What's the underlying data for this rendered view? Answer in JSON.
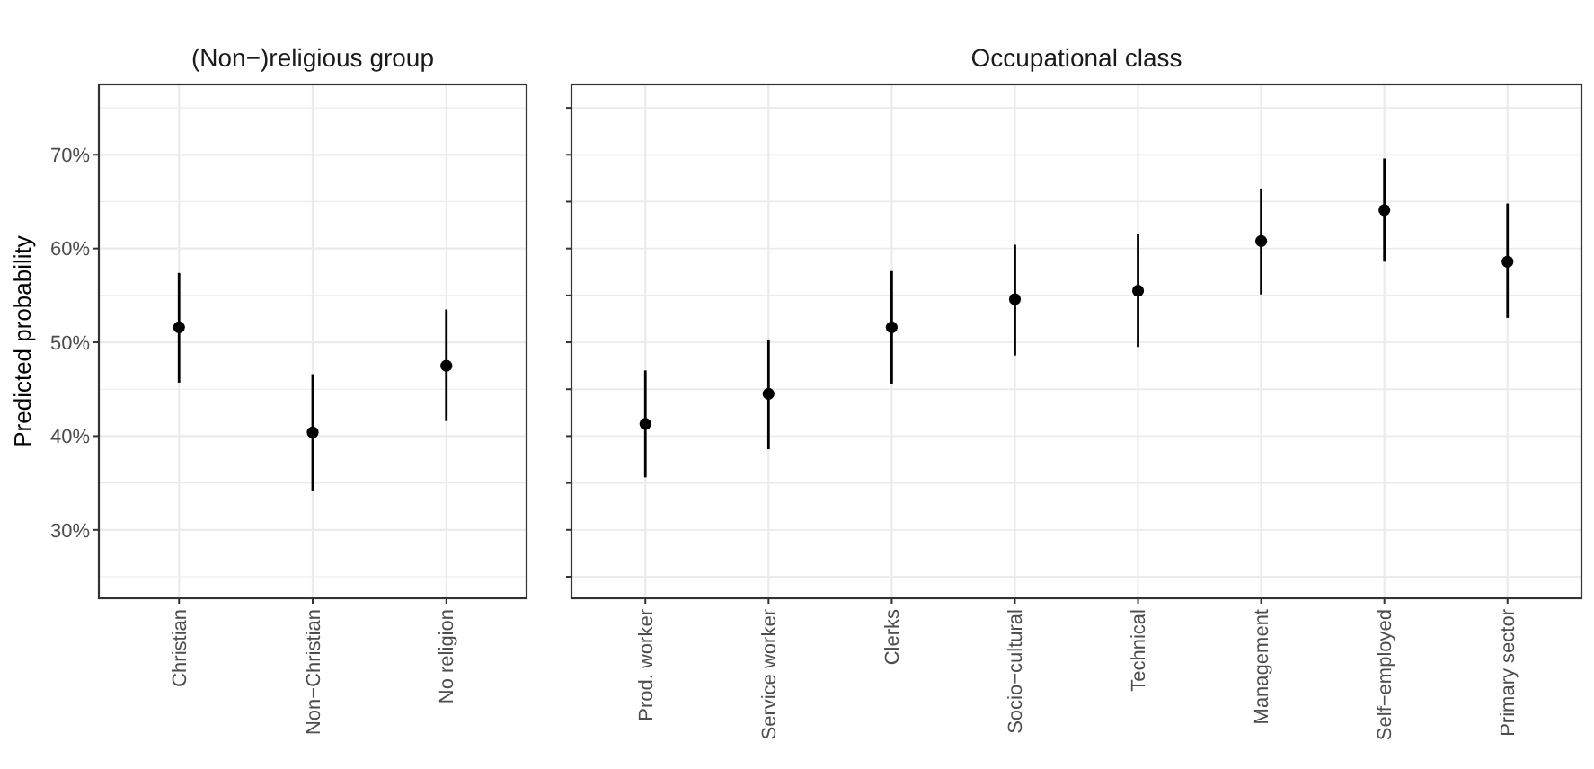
{
  "chart_data": [
    {
      "type": "scatter",
      "title": "(Non−)religious group",
      "ylabel": "Predicted probability",
      "categories": [
        "Christian",
        "Non−Christian",
        "No religion"
      ],
      "series": [
        {
          "color": "#000000",
          "values": [
            51.6,
            40.4,
            47.5
          ],
          "errors": [
            [
              45.7,
              57.4
            ],
            [
              34.1,
              46.6
            ],
            [
              41.6,
              53.5
            ]
          ]
        }
      ],
      "ylim": [
        22.7,
        77.5
      ],
      "yticks": [
        {
          "value": 25,
          "label": null
        },
        {
          "value": 30,
          "label": "30%"
        },
        {
          "value": 35,
          "label": null
        },
        {
          "value": 40,
          "label": "40%"
        },
        {
          "value": 45,
          "label": null
        },
        {
          "value": 50,
          "label": "50%"
        },
        {
          "value": 55,
          "label": null
        },
        {
          "value": 60,
          "label": "60%"
        },
        {
          "value": 65,
          "label": null
        },
        {
          "value": 70,
          "label": "70%"
        },
        {
          "value": 75,
          "label": null
        }
      ],
      "grid": true,
      "marker": "circle"
    },
    {
      "type": "scatter",
      "title": "Occupational class",
      "categories": [
        "Prod. worker",
        "Service worker",
        "Clerks",
        "Socio−cultural",
        "Technical",
        "Management",
        "Self−employed",
        "Primary sector"
      ],
      "series": [
        {
          "color": "#000000",
          "values": [
            41.3,
            44.5,
            51.6,
            54.6,
            55.5,
            60.8,
            64.1,
            58.6
          ],
          "errors": [
            [
              35.6,
              47.0
            ],
            [
              38.6,
              50.3
            ],
            [
              45.6,
              57.6
            ],
            [
              48.6,
              60.4
            ],
            [
              49.5,
              61.5
            ],
            [
              55.1,
              66.4
            ],
            [
              58.6,
              69.6
            ],
            [
              52.6,
              64.8
            ]
          ]
        }
      ],
      "ylim": [
        22.7,
        77.5
      ],
      "yticks": [
        {
          "value": 25,
          "label": null
        },
        {
          "value": 30,
          "label": null
        },
        {
          "value": 35,
          "label": null
        },
        {
          "value": 40,
          "label": null
        },
        {
          "value": 45,
          "label": null
        },
        {
          "value": 50,
          "label": null
        },
        {
          "value": 55,
          "label": null
        },
        {
          "value": 60,
          "label": null
        },
        {
          "value": 65,
          "label": null
        },
        {
          "value": 70,
          "label": null
        },
        {
          "value": 75,
          "label": null
        }
      ],
      "tick_labels": "x",
      "grid": true,
      "marker": "circle"
    }
  ]
}
